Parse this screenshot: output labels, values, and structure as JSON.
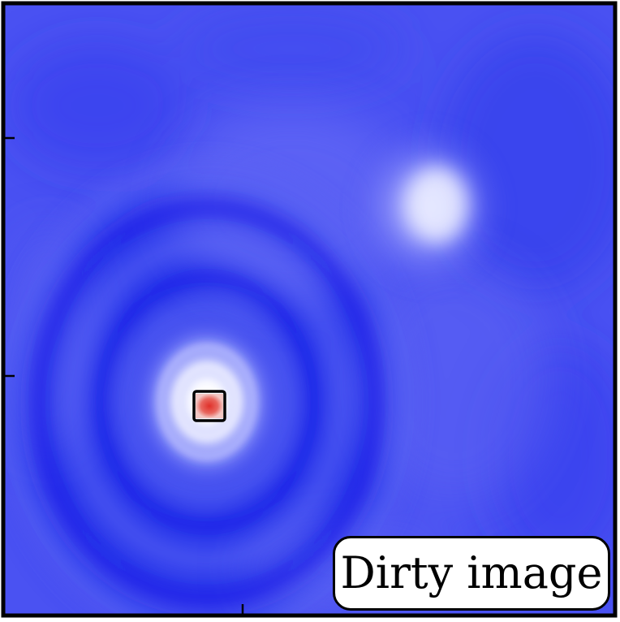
{
  "panel": {
    "label": "Dirty image"
  },
  "colors": {
    "background": "#4a52f2",
    "dark_ring": "#0a1ae6",
    "bright": "#f2f3ff",
    "peak": "#e2433a",
    "frame": "#000000"
  }
}
